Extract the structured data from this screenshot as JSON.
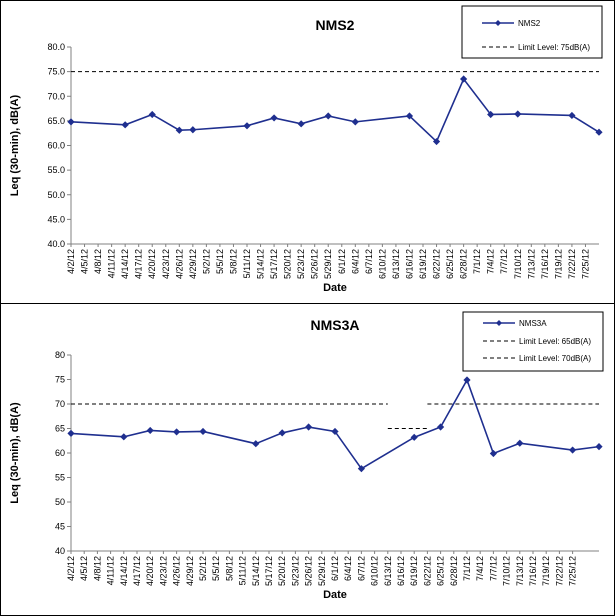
{
  "chart_data": [
    {
      "type": "line",
      "title": "NMS2",
      "xlabel": "Date",
      "ylabel": "Leq (30-min), dB(A)",
      "ylim": [
        40,
        80
      ],
      "yticks": [
        "40.0",
        "45.0",
        "50.0",
        "55.0",
        "60.0",
        "65.0",
        "70.0",
        "75.0",
        "80.0"
      ],
      "categories": [
        "4/2/12",
        "4/5/12",
        "4/8/12",
        "4/11/12",
        "4/14/12",
        "4/17/12",
        "4/20/12",
        "4/23/12",
        "4/26/12",
        "4/29/12",
        "5/2/12",
        "5/5/12",
        "5/8/12",
        "5/11/12",
        "5/14/12",
        "5/17/12",
        "5/20/12",
        "5/23/12",
        "5/26/12",
        "5/29/12",
        "6/1/12",
        "6/4/12",
        "6/7/12",
        "6/10/12",
        "6/13/12",
        "6/16/12",
        "6/19/12",
        "6/22/12",
        "6/25/12",
        "6/28/12",
        "7/1/12",
        "7/4/12",
        "7/7/12",
        "7/10/12",
        "7/13/12",
        "7/16/12",
        "7/19/12",
        "7/22/12",
        "7/25/12"
      ],
      "series": [
        {
          "name": "NMS2",
          "color": "#1f2f8f",
          "points": [
            {
              "x": "4/2/12",
              "y": 64.8
            },
            {
              "x": "4/14/12",
              "y": 64.2
            },
            {
              "x": "4/20/12",
              "y": 66.3
            },
            {
              "x": "4/26/12",
              "y": 63.1
            },
            {
              "x": "4/29/12",
              "y": 63.2
            },
            {
              "x": "5/11/12",
              "y": 64.0
            },
            {
              "x": "5/17/12",
              "y": 65.6
            },
            {
              "x": "5/23/12",
              "y": 64.4
            },
            {
              "x": "5/29/12",
              "y": 66.0
            },
            {
              "x": "6/4/12",
              "y": 64.8
            },
            {
              "x": "6/16/12",
              "y": 66.0
            },
            {
              "x": "6/22/12",
              "y": 60.8
            },
            {
              "x": "6/28/12",
              "y": 73.5
            },
            {
              "x": "7/4/12",
              "y": 66.3
            },
            {
              "x": "7/10/12",
              "y": 66.4
            },
            {
              "x": "7/22/12",
              "y": 66.1
            },
            {
              "x": "7/28/12",
              "y": 62.7
            }
          ]
        }
      ],
      "limits": [
        {
          "label": "Limit Level: 75dB(A)",
          "value": 75,
          "segments": [
            [
              "4/2/12",
              "7/28/12"
            ]
          ]
        }
      ],
      "legend": "top-right"
    },
    {
      "type": "line",
      "title": "NMS3A",
      "xlabel": "Date",
      "ylabel": "Leq (30-min), dB(A)",
      "ylim": [
        40,
        80
      ],
      "yticks": [
        "40",
        "45",
        "50",
        "55",
        "60",
        "65",
        "70",
        "75",
        "80"
      ],
      "categories": [
        "4/2/12",
        "4/5/12",
        "4/8/12",
        "4/11/12",
        "4/14/12",
        "4/17/12",
        "4/20/12",
        "4/23/12",
        "4/26/12",
        "4/29/12",
        "5/2/12",
        "5/5/12",
        "5/8/12",
        "5/11/12",
        "5/14/12",
        "5/17/12",
        "5/20/12",
        "5/23/12",
        "5/26/12",
        "5/29/12",
        "6/1/12",
        "6/4/12",
        "6/7/12",
        "6/10/12",
        "6/13/12",
        "6/16/12",
        "6/19/12",
        "6/22/12",
        "6/25/12",
        "6/28/12",
        "7/1/12",
        "7/4/12",
        "7/7/12",
        "7/10/12",
        "7/13/12",
        "7/16/12",
        "7/19/12",
        "7/22/12",
        "7/25/12"
      ],
      "series": [
        {
          "name": "NMS3A",
          "color": "#1f2f8f",
          "points": [
            {
              "x": "4/2/12",
              "y": 64.0
            },
            {
              "x": "4/14/12",
              "y": 63.3
            },
            {
              "x": "4/20/12",
              "y": 64.6
            },
            {
              "x": "4/26/12",
              "y": 64.3
            },
            {
              "x": "5/2/12",
              "y": 64.4
            },
            {
              "x": "5/14/12",
              "y": 61.9
            },
            {
              "x": "5/20/12",
              "y": 64.1
            },
            {
              "x": "5/26/12",
              "y": 65.3
            },
            {
              "x": "6/1/12",
              "y": 64.4
            },
            {
              "x": "6/7/12",
              "y": 56.8
            },
            {
              "x": "6/19/12",
              "y": 63.2
            },
            {
              "x": "6/25/12",
              "y": 65.3
            },
            {
              "x": "7/1/12",
              "y": 74.9
            },
            {
              "x": "7/7/12",
              "y": 59.9
            },
            {
              "x": "7/13/12",
              "y": 62.0
            },
            {
              "x": "7/25/12",
              "y": 60.6
            },
            {
              "x": "7/31/12",
              "y": 61.3
            }
          ]
        }
      ],
      "limits": [
        {
          "label": "Limit Level:  65dB(A)",
          "value": 65,
          "segments": [
            [
              "6/13/12",
              "6/22/12"
            ]
          ]
        },
        {
          "label": "Limit Level:  70dB(A)",
          "value": 70,
          "segments": [
            [
              "4/2/12",
              "6/13/12"
            ],
            [
              "6/22/12",
              "7/31/12"
            ]
          ]
        }
      ],
      "legend": "top-right"
    }
  ]
}
